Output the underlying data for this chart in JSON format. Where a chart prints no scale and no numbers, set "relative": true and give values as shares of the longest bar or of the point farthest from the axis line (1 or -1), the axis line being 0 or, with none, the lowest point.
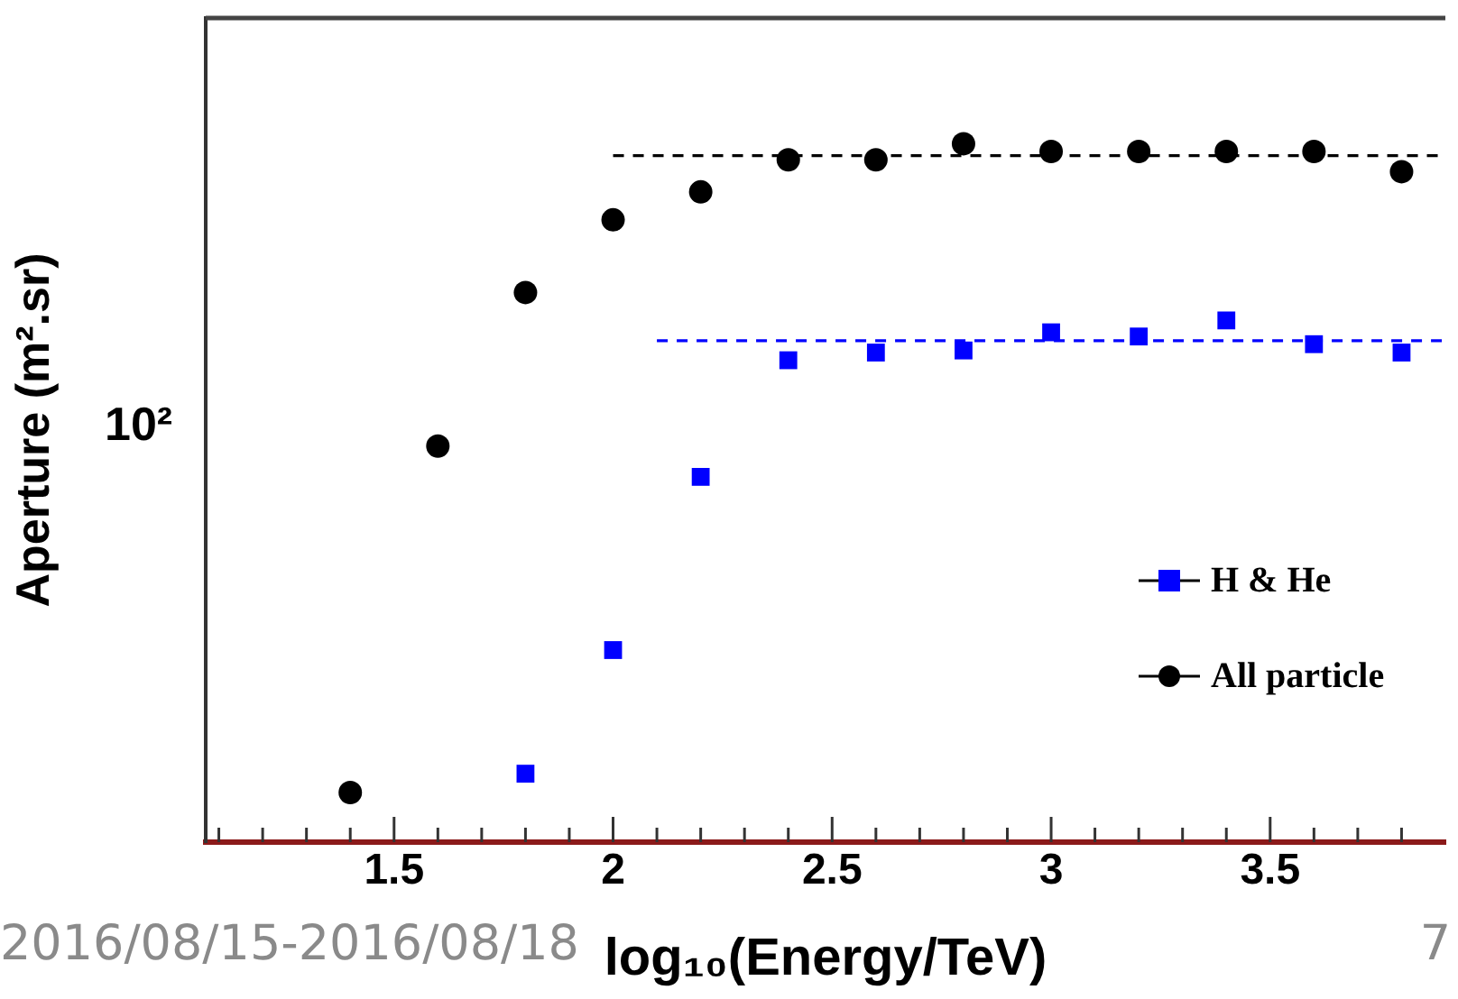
{
  "chart_data": {
    "type": "scatter",
    "xlabel": "log₁₀(Energy/TeV)",
    "ylabel": "Aperture (m².sr)",
    "relative": true,
    "grid": false,
    "legend": "bottom right",
    "xlim": [
      1.07,
      3.9
    ],
    "xticks": [
      {
        "value": 1.1,
        "label": null
      },
      {
        "value": 1.2,
        "label": null
      },
      {
        "value": 1.3,
        "label": null
      },
      {
        "value": 1.4,
        "label": null
      },
      1.5,
      {
        "value": 1.6,
        "label": null
      },
      {
        "value": 1.7,
        "label": null
      },
      {
        "value": 1.8,
        "label": null
      },
      {
        "value": 1.9,
        "label": null
      },
      2,
      {
        "value": 2.1,
        "label": null
      },
      {
        "value": 2.2,
        "label": null
      },
      {
        "value": 2.3,
        "label": null
      },
      {
        "value": 2.4,
        "label": null
      },
      2.5,
      {
        "value": 2.6,
        "label": null
      },
      {
        "value": 2.7,
        "label": null
      },
      {
        "value": 2.8,
        "label": null
      },
      {
        "value": 2.9,
        "label": null
      },
      3,
      {
        "value": 3.1,
        "label": null
      },
      {
        "value": 3.2,
        "label": null
      },
      {
        "value": 3.3,
        "label": null
      },
      {
        "value": 3.4,
        "label": null
      },
      3.5,
      {
        "value": 3.6,
        "label": null
      },
      {
        "value": 3.7,
        "label": null
      },
      {
        "value": 3.8,
        "label": null
      }
    ],
    "series": [
      {
        "name": "H & He",
        "color": "#0000ff",
        "marker": "square",
        "x": [
          1.8,
          2.0,
          2.2,
          2.4,
          2.6,
          2.8,
          3.0,
          3.2,
          3.4,
          3.6,
          3.8
        ],
        "values": [
          0.098,
          0.275,
          0.523,
          0.69,
          0.701,
          0.704,
          0.73,
          0.724,
          0.747,
          0.713,
          0.701
        ]
      },
      {
        "name": "All particle",
        "color": "#000000",
        "marker": "circle",
        "x": [
          1.4,
          1.6,
          1.8,
          2.0,
          2.2,
          2.4,
          2.6,
          2.8,
          3.0,
          3.2,
          3.4,
          3.6,
          3.8
        ],
        "values": [
          0.071,
          0.567,
          0.787,
          0.891,
          0.931,
          0.977,
          0.977,
          1,
          0.989,
          0.989,
          0.989,
          0.989,
          0.96
        ]
      },
      {
        "type": "line",
        "color": "#000000",
        "line_style": "dashed",
        "marker": "none",
        "x": [
          2.0,
          3.9
        ],
        "values": [
          0.983,
          0.983
        ]
      },
      {
        "type": "line",
        "color": "#0000ff",
        "line_style": "dashed",
        "marker": "none",
        "x": [
          2.1,
          3.9
        ],
        "values": [
          0.718,
          0.718
        ]
      }
    ],
    "annotations": [
      "10²",
      "2016/08/15-2016/08/18",
      "7"
    ]
  }
}
